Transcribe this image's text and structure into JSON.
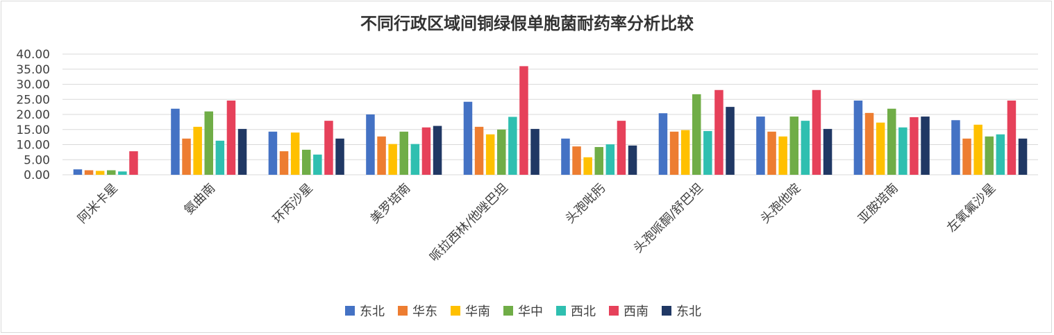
{
  "chart_data": {
    "type": "bar",
    "title": "不同行政区域间铜绿假单胞菌耐药率分析比较",
    "xlabel": "",
    "ylabel": "",
    "ylim": [
      0,
      40
    ],
    "yticks": [
      "0.00",
      "5.00",
      "10.00",
      "15.00",
      "20.00",
      "25.00",
      "30.00",
      "35.00",
      "40.00"
    ],
    "grid": true,
    "legend_position": "bottom",
    "categories": [
      "阿米卡星",
      "氨曲南",
      "环丙沙星",
      "美罗培南",
      "哌拉西林/他唑巴坦",
      "头孢吡肟",
      "头孢哌酮/舒巴坦",
      "头孢他啶",
      "亚胺培南",
      "左氧氟沙星"
    ],
    "series": [
      {
        "name": "东北",
        "color": "#4472c4",
        "values": [
          1.8,
          21.9,
          14.3,
          20.0,
          24.2,
          12.0,
          20.4,
          19.3,
          24.6,
          18.1
        ]
      },
      {
        "name": "华东",
        "color": "#ed7d31",
        "values": [
          1.5,
          12.0,
          7.8,
          12.7,
          15.9,
          9.4,
          14.3,
          14.3,
          20.5,
          12.0
        ]
      },
      {
        "name": "华南",
        "color": "#ffc000",
        "values": [
          1.3,
          15.9,
          14.0,
          10.2,
          13.4,
          5.8,
          14.8,
          12.7,
          17.3,
          16.6
        ]
      },
      {
        "name": "华中",
        "color": "#70ad47",
        "values": [
          1.5,
          21.0,
          8.3,
          14.3,
          15.0,
          9.2,
          26.7,
          19.3,
          21.9,
          12.7
        ]
      },
      {
        "name": "西北",
        "color": "#2fbfb0",
        "values": [
          1.1,
          11.3,
          6.7,
          10.2,
          19.2,
          10.1,
          14.5,
          17.9,
          15.7,
          13.4
        ]
      },
      {
        "name": "西南",
        "color": "#e6415a",
        "values": [
          7.8,
          24.6,
          17.9,
          15.7,
          36.0,
          17.9,
          28.1,
          28.1,
          19.1,
          24.6
        ]
      },
      {
        "name": "东北",
        "color": "#203864",
        "values": [
          0,
          15.2,
          12.0,
          16.2,
          15.2,
          9.7,
          22.5,
          15.2,
          19.3,
          12.0
        ]
      }
    ]
  }
}
